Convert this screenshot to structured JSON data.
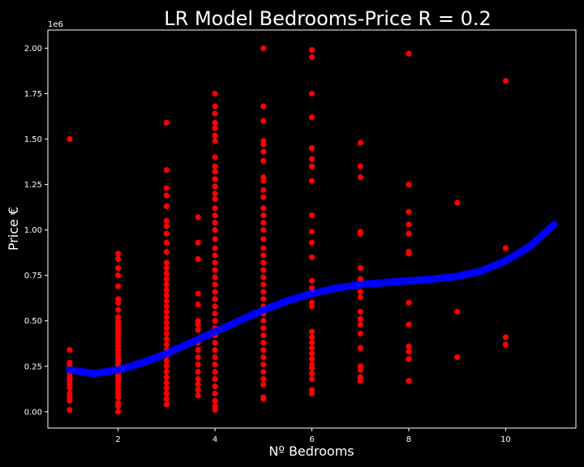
{
  "chart_data": {
    "type": "scatter",
    "title": "LR Model Bedrooms-Price R = 0.2",
    "xlabel": "Nº Bedrooms",
    "ylabel": "Price €",
    "y_offset_label": "1e6",
    "xlim": [
      0.55,
      11.45
    ],
    "ylim": [
      -0.09,
      2.1
    ],
    "x_ticks": [
      2,
      4,
      6,
      8,
      10
    ],
    "y_ticks": [
      0.0,
      0.25,
      0.5,
      0.75,
      1.0,
      1.25,
      1.5,
      1.75,
      2.0
    ],
    "y_tick_labels": [
      "0.00",
      "0.25",
      "0.50",
      "0.75",
      "1.00",
      "1.25",
      "1.50",
      "1.75",
      "2.00"
    ],
    "grid": false,
    "colors": {
      "background": "#000000",
      "points": "#ff0000",
      "fit_line": "#0000ff",
      "axes": "#ffffff"
    },
    "scatter_series": {
      "name": "",
      "color": "#ff0000",
      "points": [
        {
          "x": 1,
          "y": [
            0.01,
            0.06,
            0.08,
            0.1,
            0.13,
            0.15,
            0.17,
            0.19,
            0.21,
            0.23,
            0.25,
            0.27,
            0.34,
            1.5
          ]
        },
        {
          "x": 2,
          "y": [
            0.0,
            0.03,
            0.05,
            0.08,
            0.1,
            0.12,
            0.14,
            0.16,
            0.18,
            0.2,
            0.22,
            0.24,
            0.26,
            0.28,
            0.3,
            0.32,
            0.34,
            0.36,
            0.38,
            0.4,
            0.42,
            0.44,
            0.46,
            0.48,
            0.5,
            0.52,
            0.56,
            0.6,
            0.62,
            0.69,
            0.75,
            0.79,
            0.84,
            0.87
          ]
        },
        {
          "x": 3,
          "y": [
            0.04,
            0.07,
            0.1,
            0.13,
            0.16,
            0.19,
            0.22,
            0.25,
            0.28,
            0.31,
            0.34,
            0.37,
            0.4,
            0.43,
            0.46,
            0.49,
            0.52,
            0.55,
            0.58,
            0.61,
            0.64,
            0.67,
            0.7,
            0.73,
            0.76,
            0.79,
            0.82,
            0.88,
            0.93,
            0.98,
            1.02,
            1.05,
            1.13,
            1.19,
            1.23,
            1.33,
            1.59
          ]
        },
        {
          "x": 3.65,
          "y": [
            0.09,
            0.12,
            0.15,
            0.18,
            0.22,
            0.26,
            0.3,
            0.34,
            0.38,
            0.45,
            0.48,
            0.5,
            0.59,
            0.65,
            0.84,
            0.93,
            1.07
          ]
        },
        {
          "x": 4,
          "y": [
            0.01,
            0.03,
            0.06,
            0.1,
            0.14,
            0.18,
            0.22,
            0.26,
            0.3,
            0.34,
            0.38,
            0.42,
            0.46,
            0.5,
            0.54,
            0.58,
            0.62,
            0.66,
            0.7,
            0.74,
            0.78,
            0.82,
            0.86,
            0.9,
            0.95,
            1.0,
            1.04,
            1.08,
            1.12,
            1.17,
            1.2,
            1.24,
            1.28,
            1.32,
            1.35,
            1.4,
            1.49,
            1.52,
            1.56,
            1.59,
            1.64,
            1.68,
            1.75
          ]
        },
        {
          "x": 5,
          "y": [
            0.07,
            0.08,
            0.15,
            0.18,
            0.22,
            0.26,
            0.3,
            0.34,
            0.38,
            0.42,
            0.46,
            0.5,
            0.54,
            0.58,
            0.62,
            0.66,
            0.7,
            0.74,
            0.78,
            0.82,
            0.86,
            0.9,
            0.95,
            1.0,
            1.04,
            1.08,
            1.12,
            1.18,
            1.22,
            1.27,
            1.29,
            1.38,
            1.43,
            1.47,
            1.49,
            1.6,
            1.68,
            2.0
          ]
        },
        {
          "x": 6,
          "y": [
            0.1,
            0.12,
            0.18,
            0.21,
            0.24,
            0.26,
            0.29,
            0.32,
            0.35,
            0.38,
            0.41,
            0.44,
            0.58,
            0.6,
            0.65,
            0.68,
            0.72,
            0.85,
            0.93,
            0.99,
            1.08,
            1.27,
            1.35,
            1.39,
            1.45,
            1.62,
            1.75,
            1.95,
            1.99
          ]
        },
        {
          "x": 7,
          "y": [
            0.17,
            0.19,
            0.23,
            0.25,
            0.35,
            0.43,
            0.48,
            0.51,
            0.55,
            0.63,
            0.66,
            0.7,
            0.73,
            0.79,
            0.98,
            0.99,
            1.29,
            1.35,
            1.48
          ]
        },
        {
          "x": 8,
          "y": [
            0.17,
            0.29,
            0.33,
            0.36,
            0.48,
            0.6,
            0.72,
            0.87,
            0.88,
            0.98,
            1.03,
            1.1,
            1.25,
            1.97
          ]
        },
        {
          "x": 9,
          "y": [
            0.3,
            0.55,
            1.15
          ]
        },
        {
          "x": 10,
          "y": [
            0.37,
            0.41,
            0.9,
            1.82
          ]
        }
      ]
    },
    "fit_line": {
      "name": "",
      "color": "#0000ff",
      "x": [
        1.0,
        1.5,
        2.0,
        2.5,
        3.0,
        3.5,
        4.0,
        4.5,
        5.0,
        5.5,
        6.0,
        6.5,
        7.0,
        7.5,
        8.0,
        8.5,
        9.0,
        9.5,
        10.0,
        10.5,
        11.0
      ],
      "y": [
        0.23,
        0.21,
        0.23,
        0.27,
        0.32,
        0.38,
        0.44,
        0.5,
        0.56,
        0.61,
        0.65,
        0.68,
        0.7,
        0.71,
        0.72,
        0.73,
        0.745,
        0.775,
        0.83,
        0.91,
        1.03
      ]
    }
  }
}
